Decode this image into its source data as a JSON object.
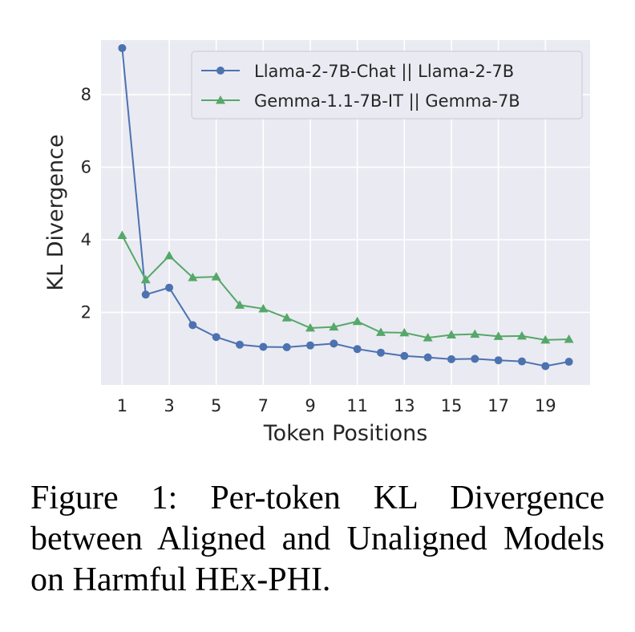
{
  "chart_data": {
    "type": "line",
    "xlabel": "Token Positions",
    "ylabel": "KL Divergence",
    "xlim": [
      0.1,
      20.9
    ],
    "ylim": [
      0.0,
      9.5
    ],
    "xticks": [
      1,
      3,
      5,
      7,
      9,
      11,
      13,
      15,
      17,
      19
    ],
    "yticks": [
      2,
      4,
      6,
      8
    ],
    "grid": true,
    "legend_position": "top-right",
    "x": [
      1,
      2,
      3,
      4,
      5,
      6,
      7,
      8,
      9,
      10,
      11,
      12,
      13,
      14,
      15,
      16,
      17,
      18,
      19,
      20
    ],
    "series": [
      {
        "name": "Llama-2-7B-Chat || Llama-2-7B",
        "color": "#4c72b0",
        "marker": "circle",
        "values": [
          9.28,
          2.49,
          2.68,
          1.65,
          1.32,
          1.11,
          1.05,
          1.04,
          1.09,
          1.14,
          0.99,
          0.89,
          0.8,
          0.76,
          0.71,
          0.72,
          0.68,
          0.65,
          0.52,
          0.64
        ]
      },
      {
        "name": "Gemma-1.1-7B-IT || Gemma-7B",
        "color": "#55a868",
        "marker": "triangle",
        "values": [
          4.12,
          2.9,
          3.56,
          2.96,
          2.98,
          2.2,
          2.1,
          1.85,
          1.57,
          1.6,
          1.75,
          1.45,
          1.44,
          1.3,
          1.38,
          1.4,
          1.34,
          1.35,
          1.24,
          1.26
        ]
      }
    ]
  },
  "caption": "Figure 1: Per-token KL Divergence between Aligned and Unaligned Models on Harmful HEx-PHI."
}
